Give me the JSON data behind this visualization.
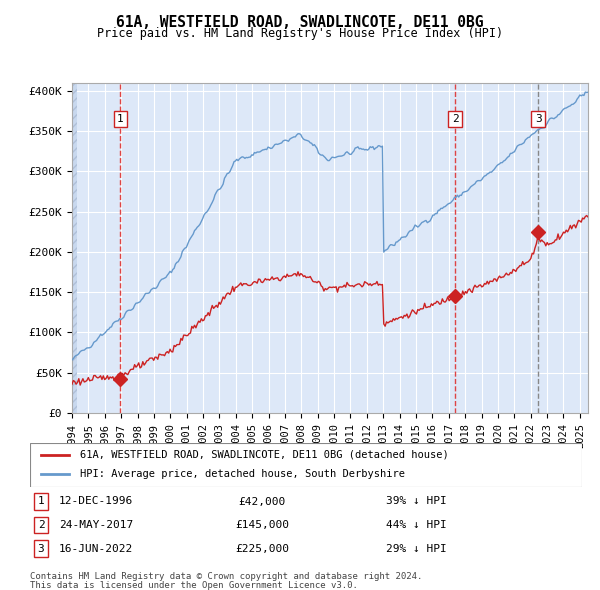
{
  "title": "61A, WESTFIELD ROAD, SWADLINCOTE, DE11 0BG",
  "subtitle": "Price paid vs. HM Land Registry's House Price Index (HPI)",
  "ylabel_ticks": [
    "£0",
    "£50K",
    "£100K",
    "£150K",
    "£200K",
    "£250K",
    "£300K",
    "£350K",
    "£400K"
  ],
  "ytick_values": [
    0,
    50000,
    100000,
    150000,
    200000,
    250000,
    300000,
    350000,
    400000
  ],
  "ylim": [
    0,
    410000
  ],
  "xlim_start": 1994.0,
  "xlim_end": 2025.5,
  "background_color": "#dde8f8",
  "hatch_color": "#c0cce0",
  "grid_color": "#ffffff",
  "hpi_color": "#6699cc",
  "sale_color": "#cc2222",
  "sale_dot_color": "#cc2222",
  "vline_color": "#dd4444",
  "vline3_color": "#888888",
  "legend_line1": "61A, WESTFIELD ROAD, SWADLINCOTE, DE11 0BG (detached house)",
  "legend_line2": "HPI: Average price, detached house, South Derbyshire",
  "sales": [
    {
      "label": "1",
      "date_num": 1996.95,
      "price": 42000,
      "date_str": "12-DEC-1996",
      "price_str": "£42,000",
      "pct": "39% ↓ HPI"
    },
    {
      "label": "2",
      "date_num": 2017.39,
      "price": 145000,
      "date_str": "24-MAY-2017",
      "price_str": "£145,000",
      "pct": "44% ↓ HPI"
    },
    {
      "label": "3",
      "date_num": 2022.46,
      "price": 225000,
      "date_str": "16-JUN-2022",
      "price_str": "£225,000",
      "pct": "29% ↓ HPI"
    }
  ],
  "footer1": "Contains HM Land Registry data © Crown copyright and database right 2024.",
  "footer2": "This data is licensed under the Open Government Licence v3.0.",
  "xtick_years": [
    1994,
    1995,
    1996,
    1997,
    1998,
    1999,
    2000,
    2001,
    2002,
    2003,
    2004,
    2005,
    2006,
    2007,
    2008,
    2009,
    2010,
    2011,
    2012,
    2013,
    2014,
    2015,
    2016,
    2017,
    2018,
    2019,
    2020,
    2021,
    2022,
    2023,
    2024,
    2025
  ]
}
